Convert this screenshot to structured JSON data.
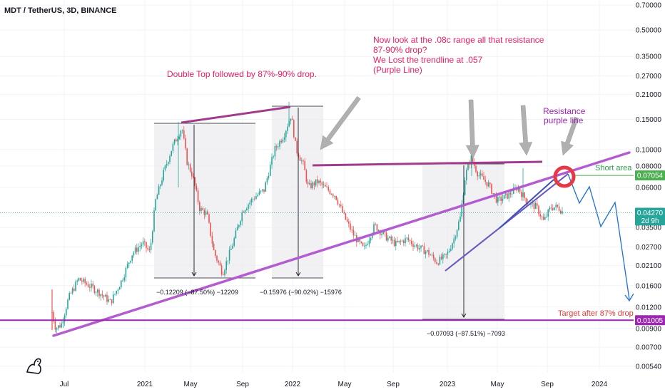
{
  "header": {
    "symbol_title": "MDT / TetherUS, 3D, BINANCE"
  },
  "chart_data": {
    "type": "candlestick",
    "scale": "log",
    "y_ticks": [
      "0.70000",
      "0.50000",
      "0.35000",
      "0.27000",
      "0.21000",
      "0.15000",
      "0.10000",
      "0.08000",
      "0.06000",
      "0.03500",
      "0.02700",
      "0.02100",
      "0.01600",
      "0.01200",
      "0.00900",
      "0.00700",
      "0.00540"
    ],
    "x_ticks": [
      "Jul",
      "2021",
      "May",
      "Sep",
      "2022",
      "May",
      "Sep",
      "2023",
      "May",
      "Sep",
      "2024"
    ],
    "ylim": [
      0.0047,
      0.75
    ],
    "price_tags": [
      {
        "label": "0.07054",
        "value": 0.07054,
        "color": "#4caf50"
      },
      {
        "label": "0.04270",
        "value": 0.0427,
        "color": "#26a69a"
      },
      {
        "label": "2d 9h",
        "value": 0.0385,
        "color": "#26a69a"
      },
      {
        "label": "0.01005",
        "value": 0.01005,
        "color": "#9c27b0"
      }
    ],
    "annotations": {
      "double_top": "Double Top followed by 87%-90% drop.",
      "range_note": [
        "Now look at the .08c range all that resistance",
        "87-90% drop?",
        "We Lost the trendline at .057",
        "(Purple Line)"
      ],
      "resistance": [
        "Resistance",
        "purple line"
      ],
      "short_area": "Short area",
      "target": "Target after 87% drop"
    },
    "measurements": [
      {
        "label": "−0.12209 (−87.50%) −12209"
      },
      {
        "label": "−0.15976 (−90.02%) −15976"
      },
      {
        "label": "−0.07093 (−87.51%) −7093"
      }
    ],
    "colors": {
      "up": "#26a69a",
      "down": "#ef5350",
      "trend": "#b45ccf",
      "resistance": "#a33b8c",
      "support": "#9c27b0",
      "channel": "#3f51b5",
      "projection": "#1e6fd9",
      "arrow": "#b0b0b0",
      "circle": "#e53945"
    }
  }
}
